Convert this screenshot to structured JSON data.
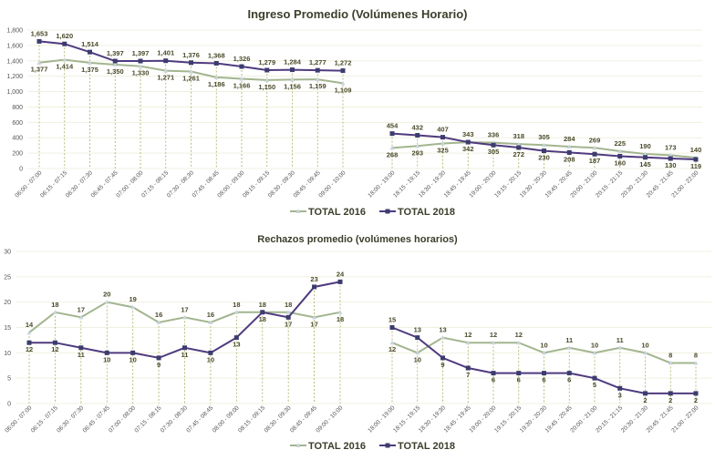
{
  "chart_data": [
    {
      "type": "line",
      "title": "Ingreso Promedio (Volúmenes Horario)",
      "ylim": [
        0,
        1800
      ],
      "yticks": [
        "0",
        "200",
        "400",
        "600",
        "800",
        "1,000",
        "1,200",
        "1,400",
        "1,600",
        "1,800"
      ],
      "grid": true,
      "legend": "bottom",
      "groups": [
        {
          "categories": [
            "06:00 - 07:00",
            "06:15 - 07:15",
            "06:30 - 07:30",
            "06:45 - 07:45",
            "07:00 - 08:00",
            "07:15 - 08:15",
            "07:30 - 08:30",
            "07:45 - 08:45",
            "08:00 - 09:00",
            "08:15 - 09:15",
            "08:30 - 09:30",
            "08:45 - 09:45",
            "09:00 - 10:00"
          ],
          "series": [
            {
              "name": "TOTAL 2016",
              "values": [
                1377,
                1414,
                1375,
                1350,
                1330,
                1271,
                1261,
                1186,
                1166,
                1150,
                1156,
                1159,
                1109
              ]
            },
            {
              "name": "TOTAL 2018",
              "values": [
                1653,
                1620,
                1514,
                1397,
                1397,
                1401,
                1376,
                1368,
                1326,
                1279,
                1284,
                1277,
                1272
              ]
            }
          ]
        },
        {
          "categories": [
            "18:00 - 19:00",
            "18:15 - 19:15",
            "18:30 - 19:30",
            "18:45 - 19:45",
            "19:00 - 20:00",
            "19:15 - 20:15",
            "19:30 - 20:30",
            "19:45 - 20:45",
            "20:00 - 21:00",
            "20:15 - 21:15",
            "20:30 - 21:30",
            "20:45 - 21:45",
            "21:00 - 22:00"
          ],
          "series": [
            {
              "name": "TOTAL 2016",
              "values": [
                268,
                293,
                325,
                342,
                336,
                318,
                305,
                284,
                269,
                225,
                190,
                173,
                140
              ]
            },
            {
              "name": "TOTAL 2018",
              "values": [
                454,
                432,
                407,
                343,
                305,
                272,
                230,
                208,
                187,
                160,
                145,
                130,
                119
              ]
            }
          ]
        }
      ]
    },
    {
      "type": "line",
      "title": "Rechazos promedio (volúmenes horarios)",
      "ylim": [
        0,
        30
      ],
      "yticks": [
        "0",
        "5",
        "10",
        "15",
        "20",
        "25",
        "30"
      ],
      "grid": true,
      "legend": "bottom",
      "groups": [
        {
          "categories": [
            "06:00 - 07:00",
            "06:15 - 07:15",
            "06:30 - 07:30",
            "06:45 - 07:45",
            "07:00 - 08:00",
            "07:15 - 08:15",
            "07:30 - 08:30",
            "07:45 - 08:45",
            "08:00 - 09:00",
            "08:15 - 09:15",
            "08:30 - 09:30",
            "08:45 - 09:45",
            "09:00 - 10:00"
          ],
          "series": [
            {
              "name": "TOTAL 2016",
              "values": [
                14,
                18,
                17,
                20,
                19,
                16,
                17,
                16,
                18,
                18,
                18,
                17,
                18
              ]
            },
            {
              "name": "TOTAL 2018",
              "values": [
                12,
                12,
                11,
                10,
                10,
                9,
                11,
                10,
                13,
                18,
                17,
                23,
                24
              ]
            }
          ]
        },
        {
          "categories": [
            "18:00 - 19:00",
            "18:15 - 19:15",
            "18:30 - 19:30",
            "18:45 - 19:45",
            "19:00 - 20:00",
            "19:15 - 20:15",
            "19:30 - 20:30",
            "19:45 - 20:45",
            "20:00 - 21:00",
            "20:15 - 21:15",
            "20:30 - 21:30",
            "20:45 - 21:45",
            "21:00 - 22:00"
          ],
          "series": [
            {
              "name": "TOTAL 2016",
              "values": [
                12,
                10,
                13,
                12,
                12,
                12,
                10,
                11,
                10,
                11,
                10,
                8,
                8
              ]
            },
            {
              "name": "TOTAL 2018",
              "values": [
                15,
                13,
                9,
                7,
                6,
                6,
                6,
                6,
                5,
                3,
                2,
                2,
                2
              ]
            }
          ]
        }
      ]
    }
  ],
  "colors": {
    "TOTAL 2016": "#a3b58f",
    "TOTAL 2018": "#4f3a7f",
    "grid": "#f0f0e0",
    "dropline": "#a8b060"
  }
}
